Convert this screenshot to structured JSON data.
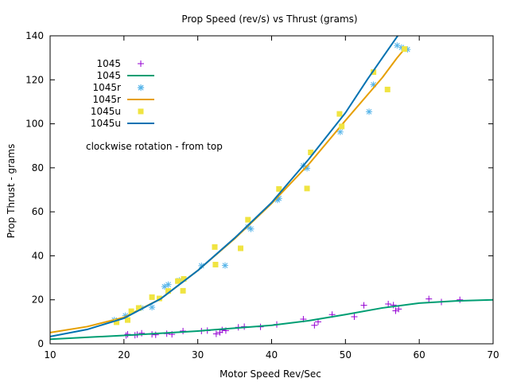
{
  "chart_data": {
    "type": "scatter",
    "title": "Prop Speed (rev/s) vs Thrust (grams)",
    "xlabel": "Motor Speed Rev/Sec",
    "ylabel": "Prop Thrust - grams",
    "xlim": [
      10,
      70
    ],
    "ylim": [
      0,
      140
    ],
    "xticks": [
      10,
      20,
      30,
      40,
      50,
      60,
      70
    ],
    "yticks": [
      0,
      20,
      40,
      60,
      80,
      100,
      120,
      140
    ],
    "grid": false,
    "legend_position": "top-left",
    "annotation": "clockwise rotation - from top",
    "series": [
      {
        "name": "1045",
        "kind": "points",
        "marker": "plus",
        "color": "#9400d3",
        "points": [
          [
            20.3,
            3.8
          ],
          [
            20.5,
            4.3
          ],
          [
            21.5,
            3.9
          ],
          [
            21.8,
            4.2
          ],
          [
            22.4,
            4.8
          ],
          [
            23.8,
            4.3
          ],
          [
            24.3,
            4.1
          ],
          [
            25.8,
            4.6
          ],
          [
            26.5,
            4.3
          ],
          [
            28.0,
            5.8
          ],
          [
            30.5,
            5.8
          ],
          [
            31.3,
            6.0
          ],
          [
            32.5,
            4.5
          ],
          [
            33.0,
            5.2
          ],
          [
            33.3,
            6.3
          ],
          [
            33.8,
            6.0
          ],
          [
            35.5,
            7.5
          ],
          [
            36.3,
            7.8
          ],
          [
            38.5,
            7.7
          ],
          [
            40.7,
            8.8
          ],
          [
            44.3,
            11.2
          ],
          [
            45.8,
            8.4
          ],
          [
            46.3,
            10.0
          ],
          [
            48.2,
            13.3
          ],
          [
            51.2,
            12.3
          ],
          [
            52.5,
            17.5
          ],
          [
            55.8,
            18.1
          ],
          [
            56.5,
            17.6
          ],
          [
            56.8,
            15.0
          ],
          [
            57.2,
            15.8
          ],
          [
            61.3,
            20.4
          ],
          [
            63.0,
            19.0
          ],
          [
            65.5,
            20.0
          ]
        ]
      },
      {
        "name": "1045",
        "kind": "line",
        "color": "#009e73",
        "points": [
          [
            10,
            2.1
          ],
          [
            20,
            3.8
          ],
          [
            30,
            5.8
          ],
          [
            40,
            8.4
          ],
          [
            45,
            10.5
          ],
          [
            50,
            13.3
          ],
          [
            55,
            16.3
          ],
          [
            60,
            18.5
          ],
          [
            65,
            19.5
          ],
          [
            70,
            20.0
          ]
        ]
      },
      {
        "name": "1045r",
        "kind": "points",
        "marker": "star",
        "color": "#56b4e9",
        "points": [
          [
            18.7,
            10.8
          ],
          [
            20.2,
            12.8
          ],
          [
            22.3,
            16.3
          ],
          [
            22.3,
            116.4
          ],
          [
            23.8,
            16.6
          ],
          [
            25.5,
            26.0
          ],
          [
            26.0,
            26.9
          ],
          [
            27.5,
            28.8
          ],
          [
            30.5,
            35.5
          ],
          [
            33.7,
            35.6
          ],
          [
            36.8,
            53.1
          ],
          [
            37.2,
            52.2
          ],
          [
            40.8,
            65.4
          ],
          [
            41.0,
            66.1
          ],
          [
            44.3,
            81.0
          ],
          [
            44.8,
            79.8
          ],
          [
            49.3,
            96.3
          ],
          [
            53.2,
            105.5
          ],
          [
            53.8,
            117.8
          ],
          [
            57.0,
            135.6
          ],
          [
            57.6,
            134.7
          ],
          [
            58.4,
            133.8
          ]
        ]
      },
      {
        "name": "1045r",
        "kind": "line",
        "color": "#e69f00",
        "points": [
          [
            10,
            5.1
          ],
          [
            15,
            7.8
          ],
          [
            20,
            12.0
          ],
          [
            25,
            20.5
          ],
          [
            30,
            33.3
          ],
          [
            35,
            47.8
          ],
          [
            40,
            63.8
          ],
          [
            45,
            81.5
          ],
          [
            50,
            101.5
          ],
          [
            55,
            121.0
          ],
          [
            57,
            130.0
          ],
          [
            58,
            134.0
          ]
        ]
      },
      {
        "name": "1045u",
        "kind": "points",
        "marker": "square",
        "color": "#f0e442",
        "points": [
          [
            19.0,
            9.8
          ],
          [
            20.5,
            10.8
          ],
          [
            21.0,
            14.8
          ],
          [
            22.0,
            16.3
          ],
          [
            23.8,
            21.2
          ],
          [
            24.8,
            20.6
          ],
          [
            26.0,
            24.0
          ],
          [
            27.3,
            28.5
          ],
          [
            28.0,
            24.1
          ],
          [
            28.1,
            29.5
          ],
          [
            32.3,
            44.0
          ],
          [
            32.4,
            36.0
          ],
          [
            35.8,
            43.4
          ],
          [
            36.8,
            56.4
          ],
          [
            41.0,
            70.4
          ],
          [
            44.8,
            70.6
          ],
          [
            45.3,
            87.0
          ],
          [
            49.2,
            104.5
          ],
          [
            49.5,
            98.8
          ],
          [
            53.8,
            123.5
          ],
          [
            55.7,
            115.6
          ],
          [
            58.0,
            134.0
          ]
        ]
      },
      {
        "name": "1045u",
        "kind": "line",
        "color": "#0072b2",
        "points": [
          [
            10,
            3.3
          ],
          [
            15,
            6.5
          ],
          [
            20,
            11.6
          ],
          [
            25,
            20.5
          ],
          [
            30,
            33.3
          ],
          [
            35,
            48.1
          ],
          [
            40,
            64.2
          ],
          [
            45,
            83.8
          ],
          [
            50,
            105.0
          ],
          [
            53,
            120.3
          ],
          [
            55,
            130.0
          ],
          [
            57.5,
            142.0
          ]
        ]
      }
    ]
  }
}
